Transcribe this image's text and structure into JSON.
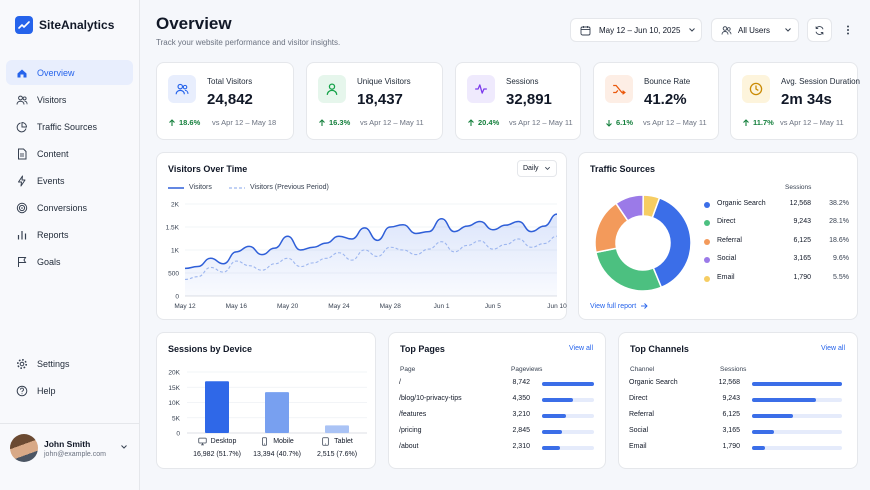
{
  "app": {
    "name": "SiteAnalytics"
  },
  "sidebar": {
    "items": [
      {
        "label": "Overview",
        "icon": "home-icon",
        "active": true
      },
      {
        "label": "Visitors",
        "icon": "users-icon"
      },
      {
        "label": "Traffic Sources",
        "icon": "pie-chart-icon"
      },
      {
        "label": "Content",
        "icon": "document-icon"
      },
      {
        "label": "Events",
        "icon": "lightning-icon"
      },
      {
        "label": "Conversions",
        "icon": "target-icon"
      },
      {
        "label": "Reports",
        "icon": "bar-chart-icon"
      },
      {
        "label": "Goals",
        "icon": "flag-icon"
      }
    ],
    "bottom_items": [
      {
        "label": "Settings",
        "icon": "gear-icon"
      },
      {
        "label": "Help",
        "icon": "help-circle-icon"
      }
    ],
    "user": {
      "name": "John Smith",
      "email": "john@example.com"
    }
  },
  "header": {
    "title": "Overview",
    "subtitle": "Track your website performance and visitor insights.",
    "date_range": "May 12 – Jun 10, 2025",
    "user_filter": "All Users"
  },
  "kpis": [
    {
      "label": "Total Visitors",
      "value": "24,842",
      "delta": "18.6%",
      "direction": "up",
      "compare": "vs Apr 12 – May 18",
      "icon": "users-icon",
      "icon_bg": "#e8eefd",
      "icon_color": "#2563eb"
    },
    {
      "label": "Unique Visitors",
      "value": "18,437",
      "delta": "16.3%",
      "direction": "up",
      "compare": "vs Apr 12 – May 11",
      "icon": "user-icon",
      "icon_bg": "#e6f6ec",
      "icon_color": "#16a34a"
    },
    {
      "label": "Sessions",
      "value": "32,891",
      "delta": "20.4%",
      "direction": "up",
      "compare": "vs Apr 12 – May 11",
      "icon": "activity-icon",
      "icon_bg": "#efeafd",
      "icon_color": "#7c3aed"
    },
    {
      "label": "Bounce Rate",
      "value": "41.2%",
      "delta": "6.1%",
      "direction": "down",
      "compare": "vs Apr 12 – May 11",
      "icon": "shuffle-icon",
      "icon_bg": "#fdeee5",
      "icon_color": "#ea580c"
    },
    {
      "label": "Avg. Session Duration",
      "value": "2m 34s",
      "delta": "11.7%",
      "direction": "up",
      "compare": "vs Apr 12 – May 11",
      "icon": "clock-icon",
      "icon_bg": "#fdf4dc",
      "icon_color": "#ca8a04"
    }
  ],
  "visitors_chart": {
    "title": "Visitors Over Time",
    "period_select": "Daily",
    "legend": {
      "current": "Visitors",
      "previous": "Visitors (Previous Period)"
    }
  },
  "traffic_sources": {
    "title": "Traffic Sources",
    "column": "Sessions",
    "link": "View full report",
    "rows": [
      {
        "name": "Organic Search",
        "sessions": "12,568",
        "pct": "38.2%",
        "color": "#3b6ee8"
      },
      {
        "name": "Direct",
        "sessions": "9,243",
        "pct": "28.1%",
        "color": "#4cc080"
      },
      {
        "name": "Referral",
        "sessions": "6,125",
        "pct": "18.6%",
        "color": "#f39a5b"
      },
      {
        "name": "Social",
        "sessions": "3,165",
        "pct": "9.6%",
        "color": "#9b7ae8"
      },
      {
        "name": "Email",
        "sessions": "1,790",
        "pct": "5.5%",
        "color": "#f6cd63"
      }
    ]
  },
  "sessions_device": {
    "title": "Sessions by Device",
    "labels": [
      {
        "name": "Desktop",
        "icon": "monitor-icon",
        "caption": "16,982 (51.7%)"
      },
      {
        "name": "Mobile",
        "icon": "smartphone-icon",
        "caption": "13,394 (40.7%)"
      },
      {
        "name": "Tablet",
        "icon": "tablet-icon",
        "caption": "2,515 (7.6%)"
      }
    ]
  },
  "top_pages": {
    "title": "Top Pages",
    "view_all": "View all",
    "col_page": "Page",
    "col_views": "Pageviews",
    "rows": [
      {
        "page": "/",
        "views": "8,742",
        "share": 1.0
      },
      {
        "page": "/blog/10-privacy-tips",
        "views": "4,350",
        "share": 0.6
      },
      {
        "page": "/features",
        "views": "3,210",
        "share": 0.47
      },
      {
        "page": "/pricing",
        "views": "2,845",
        "share": 0.39
      },
      {
        "page": "/about",
        "views": "2,310",
        "share": 0.34
      }
    ]
  },
  "top_channels": {
    "title": "Top Channels",
    "view_all": "View all",
    "col_channel": "Channel",
    "col_sessions": "Sessions",
    "rows": [
      {
        "channel": "Organic Search",
        "sessions": "12,568",
        "share": 1.0
      },
      {
        "channel": "Direct",
        "sessions": "9,243",
        "share": 0.71
      },
      {
        "channel": "Referral",
        "sessions": "6,125",
        "share": 0.45
      },
      {
        "channel": "Social",
        "sessions": "3,165",
        "share": 0.24
      },
      {
        "channel": "Email",
        "sessions": "1,790",
        "share": 0.14
      }
    ]
  },
  "chart_data": [
    {
      "type": "line",
      "title": "Visitors Over Time",
      "x_ticks": [
        "May 12",
        "May 16",
        "May 20",
        "May 24",
        "May 28",
        "Jun 1",
        "Jun 5",
        "Jun 10"
      ],
      "y_ticks": [
        "0",
        "500",
        "1K",
        "1.5K",
        "2K"
      ],
      "ylim": [
        0,
        2000
      ],
      "x": [
        "May 12",
        "May 13",
        "May 14",
        "May 15",
        "May 16",
        "May 17",
        "May 18",
        "May 19",
        "May 20",
        "May 21",
        "May 22",
        "May 23",
        "May 24",
        "May 25",
        "May 26",
        "May 27",
        "May 28",
        "May 29",
        "May 30",
        "May 31",
        "Jun 1",
        "Jun 2",
        "Jun 3",
        "Jun 4",
        "Jun 5",
        "Jun 6",
        "Jun 7",
        "Jun 8",
        "Jun 9",
        "Jun 10"
      ],
      "series": [
        {
          "name": "Visitors",
          "values": [
            600,
            640,
            820,
            700,
            960,
            1080,
            900,
            1040,
            1300,
            1000,
            1060,
            1150,
            1300,
            1240,
            1480,
            1210,
            1500,
            1550,
            1360,
            1400,
            1680,
            1400,
            1520,
            1620,
            1440,
            1540,
            1620,
            1400,
            1520,
            1780
          ]
        },
        {
          "name": "Visitors (Previous Period)",
          "values": [
            360,
            420,
            620,
            520,
            760,
            660,
            560,
            700,
            820,
            640,
            720,
            820,
            940,
            780,
            1000,
            860,
            1060,
            1000,
            900,
            1020,
            1180,
            960,
            1100,
            1200,
            1020,
            1120,
            1240,
            1060,
            1140,
            1300
          ]
        }
      ],
      "grid": true,
      "legend": "top-left"
    },
    {
      "type": "pie",
      "title": "Traffic Sources",
      "categories": [
        "Organic Search",
        "Direct",
        "Referral",
        "Social",
        "Email"
      ],
      "values": [
        38.2,
        28.1,
        18.6,
        9.6,
        5.5
      ]
    },
    {
      "type": "bar",
      "title": "Sessions by Device",
      "categories": [
        "Desktop",
        "Mobile",
        "Tablet"
      ],
      "values": [
        16982,
        13394,
        2515
      ],
      "y_ticks": [
        "0",
        "5K",
        "10K",
        "15K",
        "20K"
      ],
      "ylim": [
        0,
        20000
      ]
    }
  ]
}
